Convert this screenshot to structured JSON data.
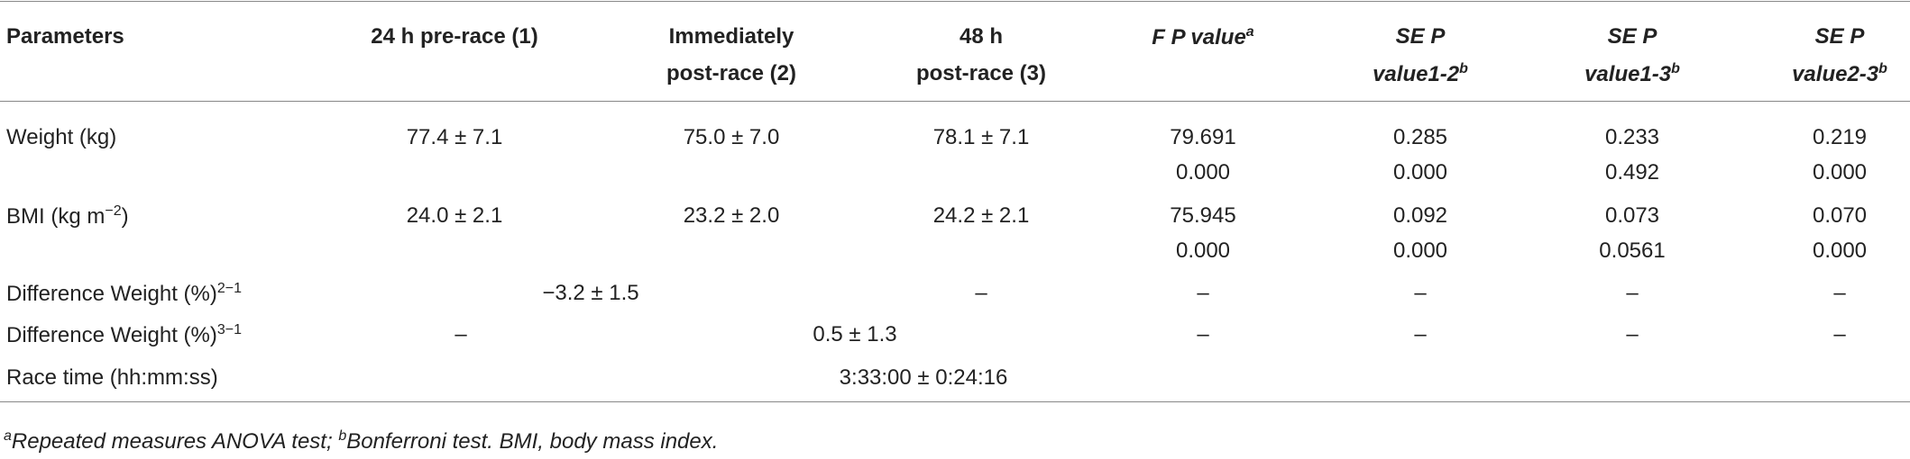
{
  "table": {
    "headers": [
      {
        "lines": [
          "Parameters"
        ]
      },
      {
        "lines": [
          "24 h pre-race (1)"
        ]
      },
      {
        "lines": [
          "Immediately",
          "post-race (2)"
        ]
      },
      {
        "lines": [
          "48 h",
          "post-race (3)"
        ]
      },
      {
        "lines": [
          "F P value"
        ],
        "sup": "a"
      },
      {
        "lines": [
          "SE P",
          "value1-2"
        ],
        "sup": "b"
      },
      {
        "lines": [
          "SE P",
          "value1-3"
        ],
        "sup": "b"
      },
      {
        "lines": [
          "SE P",
          "value2-3"
        ],
        "sup": "b"
      }
    ],
    "rows": [
      {
        "label": {
          "text": "Weight (kg)"
        },
        "cells": [
          [
            "77.4 ± 7.1"
          ],
          [
            "75.0 ± 7.0"
          ],
          [
            "78.1 ± 7.1"
          ],
          [
            "79.691",
            "0.000"
          ],
          [
            "0.285",
            "0.000"
          ],
          [
            "0.233",
            "0.492"
          ],
          [
            "0.219",
            "0.000"
          ]
        ]
      },
      {
        "label": {
          "text": "BMI (kg m",
          "sup": "−2",
          "after": ")"
        },
        "cells": [
          [
            "24.0 ± 2.1"
          ],
          [
            "23.2 ± 2.0"
          ],
          [
            "24.2 ± 2.1"
          ],
          [
            "75.945",
            "0.000"
          ],
          [
            "0.092",
            "0.000"
          ],
          [
            "0.073",
            "0.0561"
          ],
          [
            "0.070",
            "0.000"
          ]
        ]
      },
      {
        "label": {
          "text": "Difference Weight (%)",
          "sup": "2−1"
        },
        "cells": [
          [
            "−3.2 ± 1.5"
          ],
          [
            "–"
          ],
          [
            "–"
          ],
          [
            "–"
          ],
          [
            "–"
          ],
          [
            "–"
          ]
        ]
      },
      {
        "label": {
          "text": "Difference Weight (%)",
          "sup": "3−1"
        },
        "cells": [
          [
            "–"
          ],
          [
            "0.5 ± 1.3"
          ],
          [
            "–"
          ],
          [
            "–"
          ],
          [
            "–"
          ],
          [
            "–"
          ]
        ]
      },
      {
        "label": {
          "text": "Race time (hh:mm:ss)"
        },
        "cells": [
          [
            "3:33:00 ± 0:24:16"
          ]
        ]
      }
    ],
    "footnote": [
      {
        "sup": "a",
        "text": "Repeated measures ANOVA test; "
      },
      {
        "sup": "b",
        "text": "Bonferroni test. BMI, body mass index."
      }
    ]
  }
}
